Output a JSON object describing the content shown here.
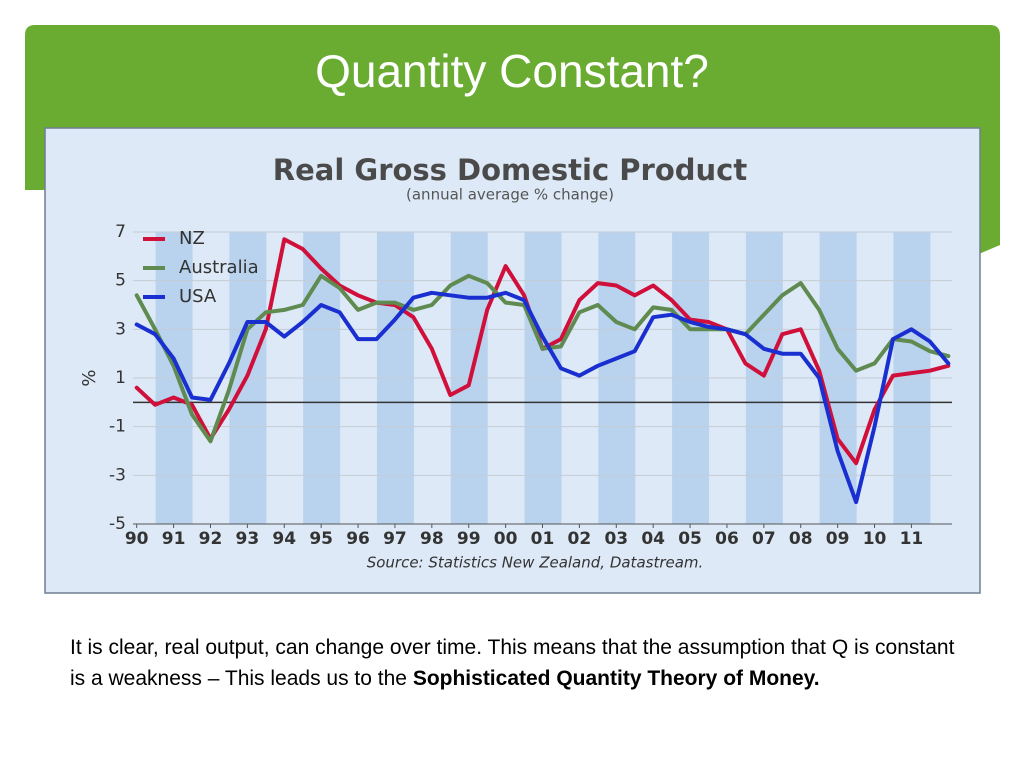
{
  "slide_title": "Quantity Constant?",
  "body": {
    "text": "It is clear, real output, can change over time. This means that the assumption that Q is constant is a weakness – This leads us to the ",
    "bold": "Sophisticated Quantity Theory of Money."
  },
  "chart_data": {
    "type": "line",
    "title": "Real Gross Domestic Product",
    "subtitle": "(annual average % change)",
    "y_label": "%",
    "source": "Source: Statistics New Zealand, Datastream.",
    "x": [
      1990,
      1990.5,
      1991,
      1991.5,
      1992,
      1992.5,
      1993,
      1993.5,
      1994,
      1994.5,
      1995,
      1995.5,
      1996,
      1996.5,
      1997,
      1997.5,
      1998,
      1998.5,
      1999,
      1999.5,
      2000,
      2000.5,
      2001,
      2001.5,
      2002,
      2002.5,
      2003,
      2003.5,
      2004,
      2004.5,
      2005,
      2005.5,
      2006,
      2006.5,
      2007,
      2007.5,
      2008,
      2008.5,
      2009,
      2009.5,
      2010,
      2010.5,
      2011,
      2011.5,
      2012
    ],
    "series": [
      {
        "name": "NZ",
        "color": "#d0103a",
        "values": [
          0.6,
          -0.1,
          0.2,
          -0.1,
          -1.5,
          -0.3,
          1.1,
          3,
          6.7,
          6.3,
          5.5,
          4.8,
          4.4,
          4.1,
          4.0,
          3.5,
          2.2,
          0.3,
          0.7,
          3.8,
          5.6,
          4.4,
          2.2,
          2.6,
          4.2,
          4.9,
          4.8,
          4.4,
          4.8,
          4.2,
          3.4,
          3.3,
          3,
          1.6,
          1.1,
          2.8,
          3,
          1.3,
          -1.5,
          -2.5,
          -0.3,
          1.1,
          1.2,
          1.3,
          1.5
        ]
      },
      {
        "name": "Australia",
        "color": "#5f8a50",
        "values": [
          4.4,
          3,
          1.5,
          -0.5,
          -1.6,
          0.5,
          3,
          3.7,
          3.8,
          4,
          5.2,
          4.7,
          3.8,
          4.1,
          4.1,
          3.8,
          4.0,
          4.8,
          5.2,
          4.9,
          4.1,
          4.0,
          2.2,
          2.3,
          3.7,
          4.0,
          3.3,
          3.0,
          3.9,
          3.8,
          3.0,
          3.0,
          3.0,
          2.8,
          3.6,
          4.4,
          4.9,
          3.8,
          2.2,
          1.3,
          1.6,
          2.6,
          2.5,
          2.1,
          1.9
        ]
      },
      {
        "name": "USA",
        "color": "#1a2fd0",
        "values": [
          3.2,
          2.8,
          1.8,
          0.2,
          0.1,
          1.6,
          3.3,
          3.3,
          2.7,
          3.3,
          4.0,
          3.7,
          2.6,
          2.6,
          3.4,
          4.3,
          4.5,
          4.4,
          4.3,
          4.3,
          4.5,
          4.2,
          2.7,
          1.4,
          1.1,
          1.5,
          1.8,
          2.1,
          3.5,
          3.6,
          3.3,
          3.1,
          3.0,
          2.8,
          2.2,
          2.0,
          2.0,
          1.0,
          -2.0,
          -4.1,
          -1.0,
          2.6,
          3.0,
          2.5,
          1.6
        ]
      }
    ],
    "xlim": [
      1989.9,
      2012.1
    ],
    "xticks": [
      {
        "value": 1990,
        "label": "90"
      },
      {
        "value": 1991,
        "label": "91"
      },
      {
        "value": 1992,
        "label": "92"
      },
      {
        "value": 1993,
        "label": "93"
      },
      {
        "value": 1994,
        "label": "94"
      },
      {
        "value": 1995,
        "label": "95"
      },
      {
        "value": 1996,
        "label": "96"
      },
      {
        "value": 1997,
        "label": "97"
      },
      {
        "value": 1998,
        "label": "98"
      },
      {
        "value": 1999,
        "label": "99"
      },
      {
        "value": 2000,
        "label": "00"
      },
      {
        "value": 2001,
        "label": "01"
      },
      {
        "value": 2002,
        "label": "02"
      },
      {
        "value": 2003,
        "label": "03"
      },
      {
        "value": 2004,
        "label": "04"
      },
      {
        "value": 2005,
        "label": "05"
      },
      {
        "value": 2006,
        "label": "06"
      },
      {
        "value": 2007,
        "label": "07"
      },
      {
        "value": 2008,
        "label": "08"
      },
      {
        "value": 2009,
        "label": "09"
      },
      {
        "value": 2010,
        "label": "10"
      },
      {
        "value": 2011,
        "label": "11"
      }
    ],
    "ylim": [
      -5,
      7
    ],
    "yticks": [
      -5,
      -3,
      -1,
      1,
      3,
      5,
      7
    ],
    "grid": true,
    "legend": "top-left"
  }
}
